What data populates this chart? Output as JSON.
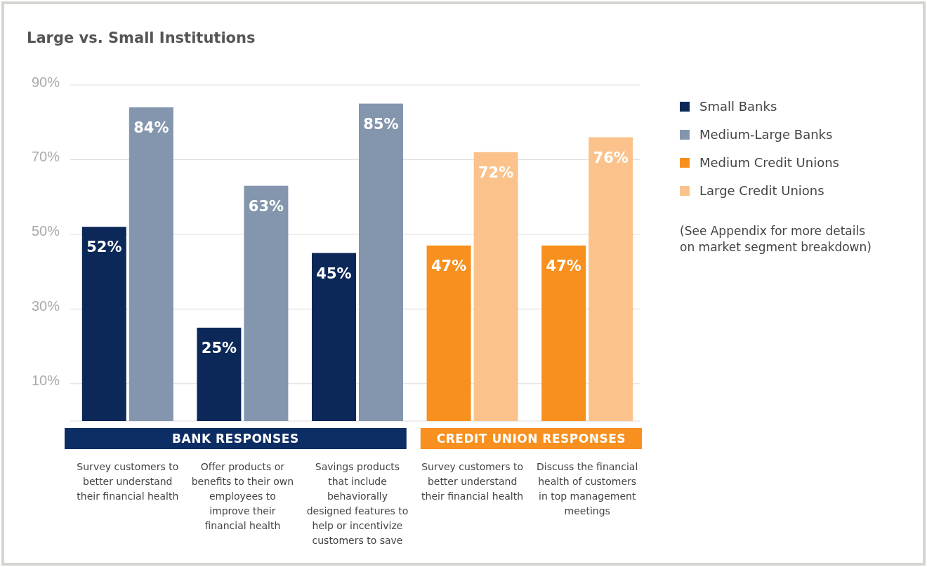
{
  "chart_data": {
    "type": "bar",
    "title": "Large vs. Small Institutions",
    "categories": [
      "Survey customers to better understand their financial health",
      "Offer products or benefits to their own employees to improve their financial health",
      "Savings products that include behaviorally designed features to help or incentivize customers to save",
      "Survey customers to better understand their financial health",
      "Discuss the financial health of customers in top management meetings"
    ],
    "series": [
      {
        "name": "Small Banks",
        "color": "#0b2858",
        "values": [
          52,
          25,
          45,
          null,
          null
        ],
        "value_labels": [
          "52%",
          "25%",
          "45%",
          null,
          null
        ]
      },
      {
        "name": "Medium-Large Banks",
        "color": "#8496ae",
        "values": [
          84,
          63,
          85,
          null,
          null
        ],
        "value_labels": [
          "84%",
          "63%",
          "85%",
          null,
          null
        ]
      },
      {
        "name": "Medium Credit Unions",
        "color": "#f7901e",
        "values": [
          null,
          null,
          null,
          47,
          47
        ],
        "value_labels": [
          null,
          null,
          null,
          "47%",
          "47%"
        ]
      },
      {
        "name": "Large Credit Unions",
        "color": "#fbc38b",
        "values": [
          null,
          null,
          null,
          72,
          76
        ],
        "value_labels": [
          null,
          null,
          null,
          "72%",
          "76%"
        ]
      }
    ],
    "ylim": [
      0,
      90
    ],
    "yticks": [
      {
        "value": 10,
        "label": "10%"
      },
      {
        "value": 30,
        "label": "30%"
      },
      {
        "value": 50,
        "label": "50%"
      },
      {
        "value": 70,
        "label": "70%"
      },
      {
        "value": 90,
        "label": "90%"
      }
    ],
    "grid": "y",
    "legend": "right",
    "annotations": [
      "BANK RESPONSES",
      "CREDIT UNION RESPONSES",
      "(See Appendix for more details on market segment breakdown)"
    ]
  }
}
